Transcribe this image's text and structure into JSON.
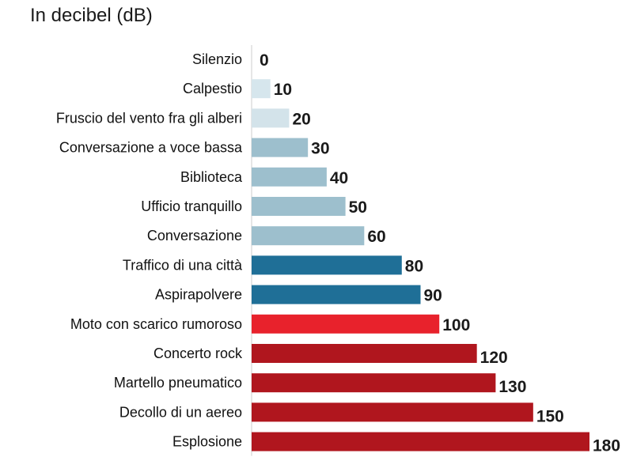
{
  "chart_data": {
    "type": "bar",
    "orientation": "horizontal",
    "title": "In decibel (dB)",
    "xlabel": "",
    "ylabel": "",
    "xlim": [
      0,
      180
    ],
    "grid": false,
    "legend": "none",
    "categories": [
      "Silenzio",
      "Calpestio",
      "Fruscio del vento fra gli alberi",
      "Conversazione a voce bassa",
      "Biblioteca",
      "Ufficio tranquillo",
      "Conversazione",
      "Traffico di una città",
      "Aspirapolvere",
      "Moto con scarico rumoroso",
      "Concerto rock",
      "Martello pneumatico",
      "Decollo di un aereo",
      "Esplosione"
    ],
    "values": [
      0,
      10,
      20,
      30,
      40,
      50,
      60,
      80,
      90,
      100,
      120,
      130,
      150,
      180
    ],
    "value_labels": [
      "0",
      "10",
      "20",
      "30",
      "40",
      "50",
      "60",
      "80",
      "90",
      "100",
      "120",
      "130",
      "150",
      "180"
    ],
    "colors": [
      "#dce9ef",
      "#d6e6ed",
      "#d3e3ea",
      "#9dbfcd",
      "#9dbfcd",
      "#9dbfcd",
      "#9dbfcd",
      "#1f6f97",
      "#1f6f97",
      "#e8222c",
      "#b0161e",
      "#b0161e",
      "#b0161e",
      "#b0161e"
    ],
    "baseline_color": "#cccccc"
  }
}
